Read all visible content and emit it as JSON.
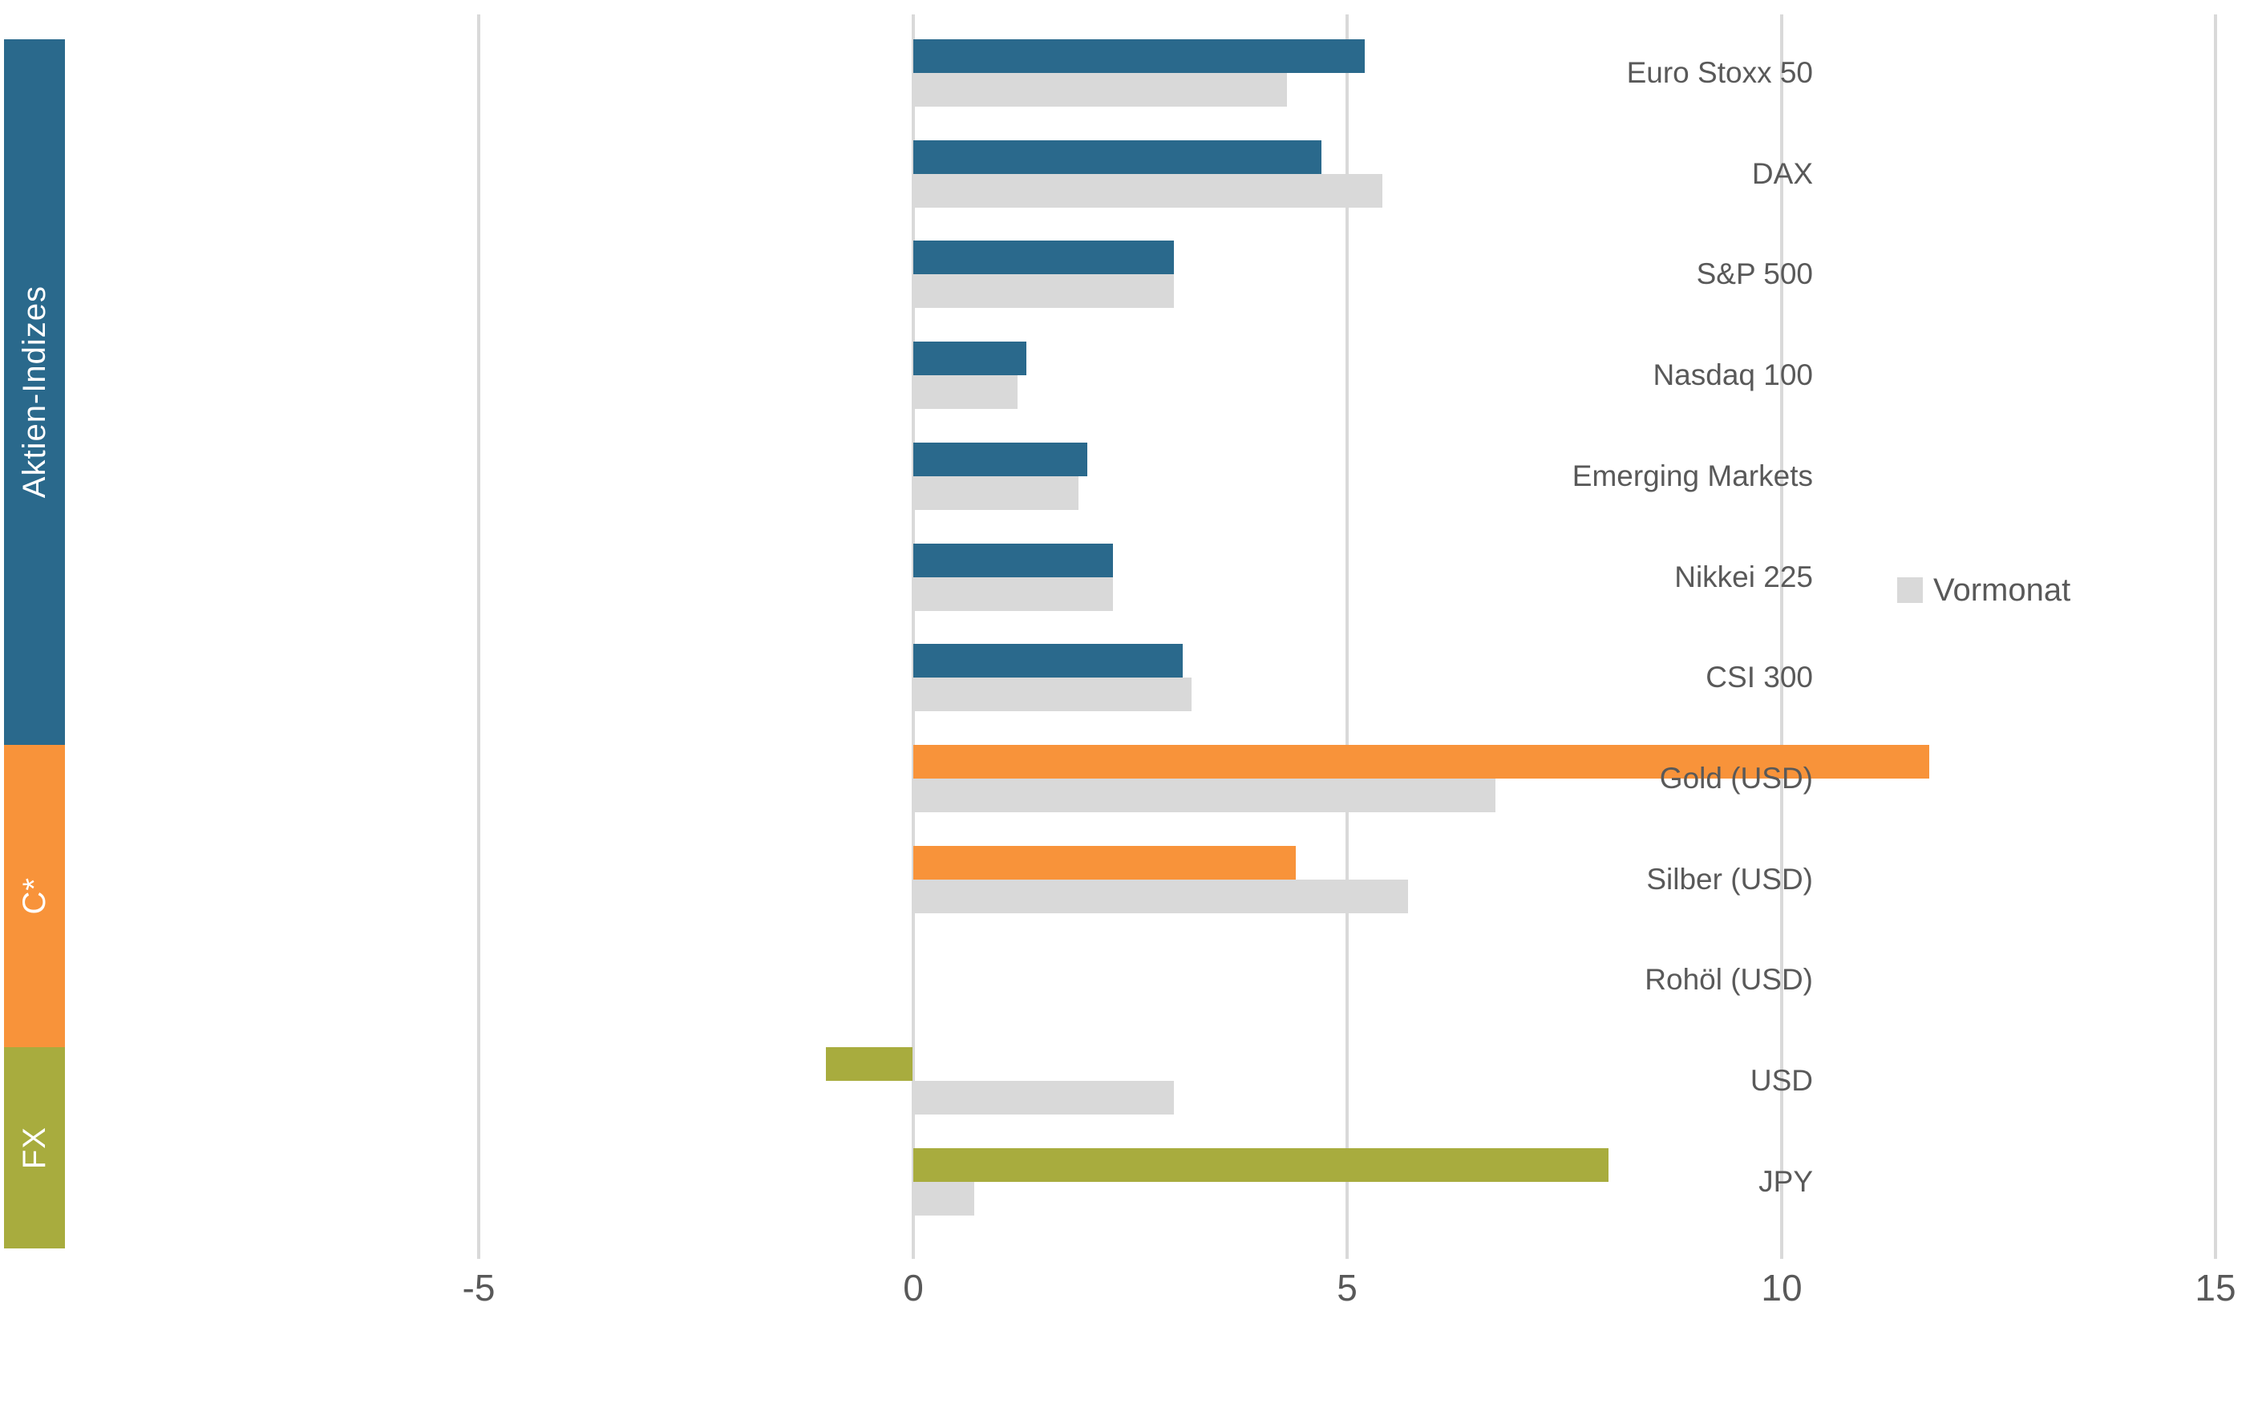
{
  "chart_data": {
    "type": "bar",
    "orientation": "horizontal",
    "title": "",
    "xlabel": "",
    "ylabel": "",
    "xlim": [
      -5,
      15
    ],
    "x_ticks": [
      -5,
      0,
      5,
      10,
      15
    ],
    "grid": true,
    "gridline_color": "#D9D9D9",
    "text_color": "#595959",
    "legend": {
      "label": "Vormonat",
      "color": "#D9D9D9",
      "position": "right"
    },
    "groups": [
      {
        "label": "Aktien-Indizes",
        "color": "#2A698C"
      },
      {
        "label": "C*",
        "color": "#F8933A"
      },
      {
        "label": "FX",
        "color": "#A8AC3E"
      }
    ],
    "rows": [
      {
        "category": "Euro Stoxx 50",
        "group": "Aktien-Indizes",
        "value": 5.2,
        "vormonat": 4.3
      },
      {
        "category": "DAX",
        "group": "Aktien-Indizes",
        "value": 4.7,
        "vormonat": 5.4
      },
      {
        "category": "S&P 500",
        "group": "Aktien-Indizes",
        "value": 3.0,
        "vormonat": 3.0
      },
      {
        "category": "Nasdaq 100",
        "group": "Aktien-Indizes",
        "value": 1.3,
        "vormonat": 1.2
      },
      {
        "category": "Emerging Markets",
        "group": "Aktien-Indizes",
        "value": 2.0,
        "vormonat": 1.9
      },
      {
        "category": "Nikkei 225",
        "group": "Aktien-Indizes",
        "value": 2.3,
        "vormonat": 2.3
      },
      {
        "category": "CSI 300",
        "group": "Aktien-Indizes",
        "value": 3.1,
        "vormonat": 3.2
      },
      {
        "category": "Gold (USD)",
        "group": "C*",
        "value": 11.7,
        "vormonat": 6.7
      },
      {
        "category": "Silber (USD)",
        "group": "C*",
        "value": 4.4,
        "vormonat": 5.7
      },
      {
        "category": "Rohöl (USD)",
        "group": "C*",
        "value": 0.0,
        "vormonat": 0.0
      },
      {
        "category": "USD",
        "group": "FX",
        "value": -1.0,
        "vormonat": 3.0
      },
      {
        "category": "JPY",
        "group": "FX",
        "value": 8.0,
        "vormonat": 0.7
      }
    ],
    "vormonat_color": "#D9D9D9"
  }
}
